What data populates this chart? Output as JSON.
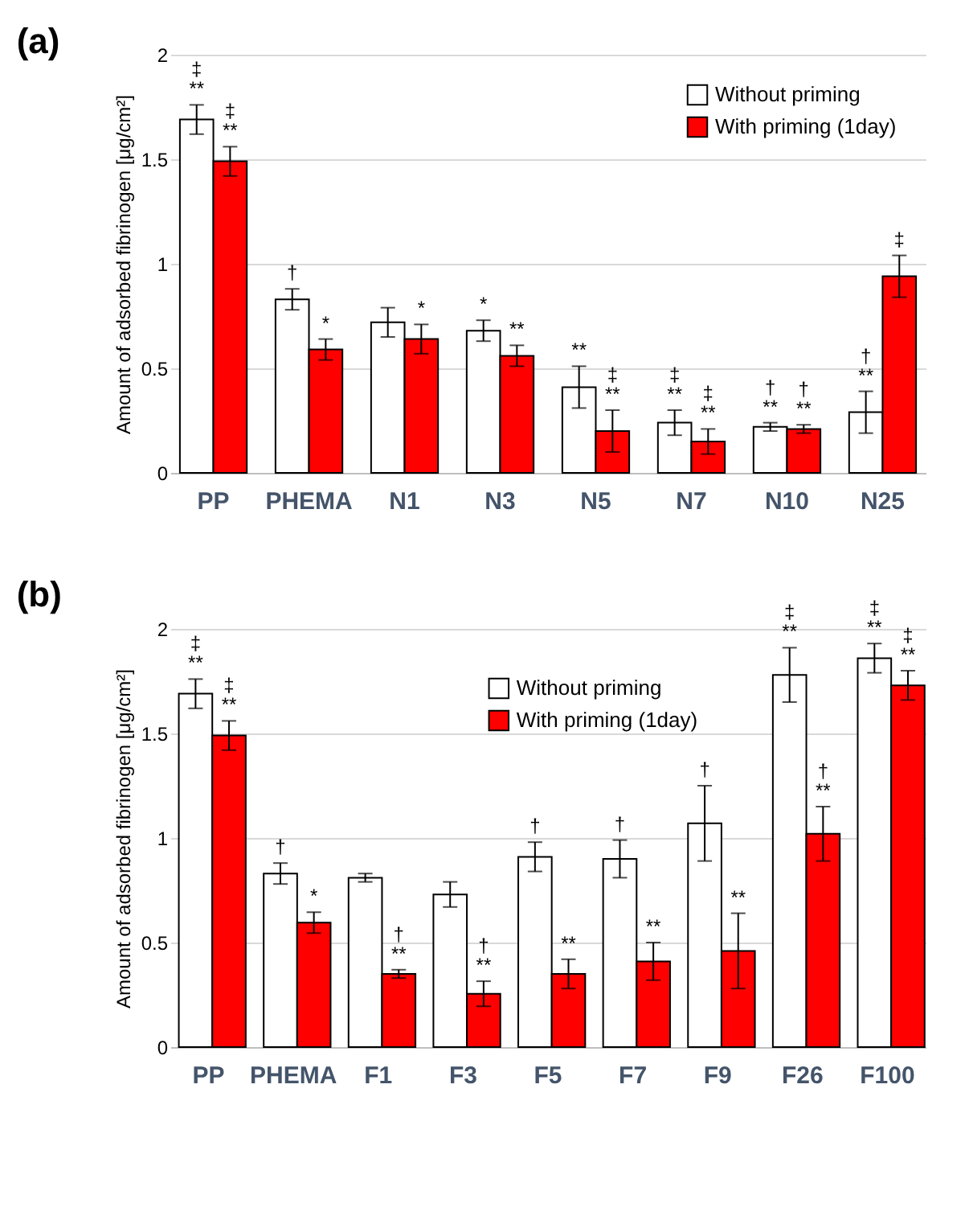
{
  "chart_data": [
    {
      "type": "bar",
      "title": "(a)",
      "ylabel": "Amount of adsorbed fibrinogen [μg/cm²]",
      "categories": [
        "PP",
        "PHEMA",
        "N1",
        "N3",
        "N5",
        "N7",
        "N10",
        "N25"
      ],
      "series": [
        {
          "name": "Without priming",
          "color": "#ffffff",
          "values": [
            1.69,
            0.83,
            0.72,
            0.68,
            0.41,
            0.24,
            0.22,
            0.29
          ],
          "errors": [
            0.07,
            0.05,
            0.07,
            0.05,
            0.1,
            0.06,
            0.02,
            0.1
          ],
          "value_labels": [
            "‡\n**",
            "†",
            null,
            "*",
            "**",
            "‡\n**",
            "†\n**",
            "†\n**"
          ]
        },
        {
          "name": "With priming (1day)",
          "color": "#ff0000",
          "values": [
            1.49,
            0.59,
            0.64,
            0.56,
            0.2,
            0.15,
            0.21,
            0.94
          ],
          "errors": [
            0.07,
            0.05,
            0.07,
            0.05,
            0.1,
            0.06,
            0.02,
            0.1
          ],
          "value_labels": [
            "‡\n**",
            "*",
            "*",
            "**",
            "‡\n**",
            "‡\n**",
            "†\n**",
            "‡"
          ]
        }
      ],
      "ylim": [
        0,
        2
      ],
      "yticks": [
        0,
        0.5,
        1,
        1.5,
        2
      ],
      "grid": "y",
      "legend": "top right"
    },
    {
      "type": "bar",
      "title": "(b)",
      "ylabel": "Amount of adsorbed fibrinogen [μg/cm²]",
      "categories": [
        "PP",
        "PHEMA",
        "F1",
        "F3",
        "F5",
        "F7",
        "F9",
        "F26",
        "F100"
      ],
      "series": [
        {
          "name": "Without priming",
          "color": "#ffffff",
          "values": [
            1.69,
            0.83,
            0.81,
            0.73,
            0.91,
            0.9,
            1.07,
            1.78,
            1.86
          ],
          "errors": [
            0.07,
            0.05,
            0.02,
            0.06,
            0.07,
            0.09,
            0.18,
            0.13,
            0.07
          ],
          "value_labels": [
            "‡\n**",
            "†",
            null,
            null,
            "†",
            "†",
            "†",
            "‡\n**",
            "‡\n**"
          ]
        },
        {
          "name": "With priming (1day)",
          "color": "#ff0000",
          "values": [
            1.49,
            0.595,
            0.35,
            0.255,
            0.35,
            0.41,
            0.46,
            1.02,
            1.73
          ],
          "errors": [
            0.07,
            0.05,
            0.02,
            0.06,
            0.07,
            0.09,
            0.18,
            0.13,
            0.07
          ],
          "value_labels": [
            "‡\n**",
            "*",
            "†\n**",
            "†\n**",
            "**",
            "**",
            "**",
            "†\n**",
            "‡\n**"
          ]
        }
      ],
      "ylim": [
        0,
        2
      ],
      "yticks": [
        0,
        0.5,
        1,
        1.5,
        2
      ],
      "grid": "y",
      "legend": "top"
    }
  ]
}
